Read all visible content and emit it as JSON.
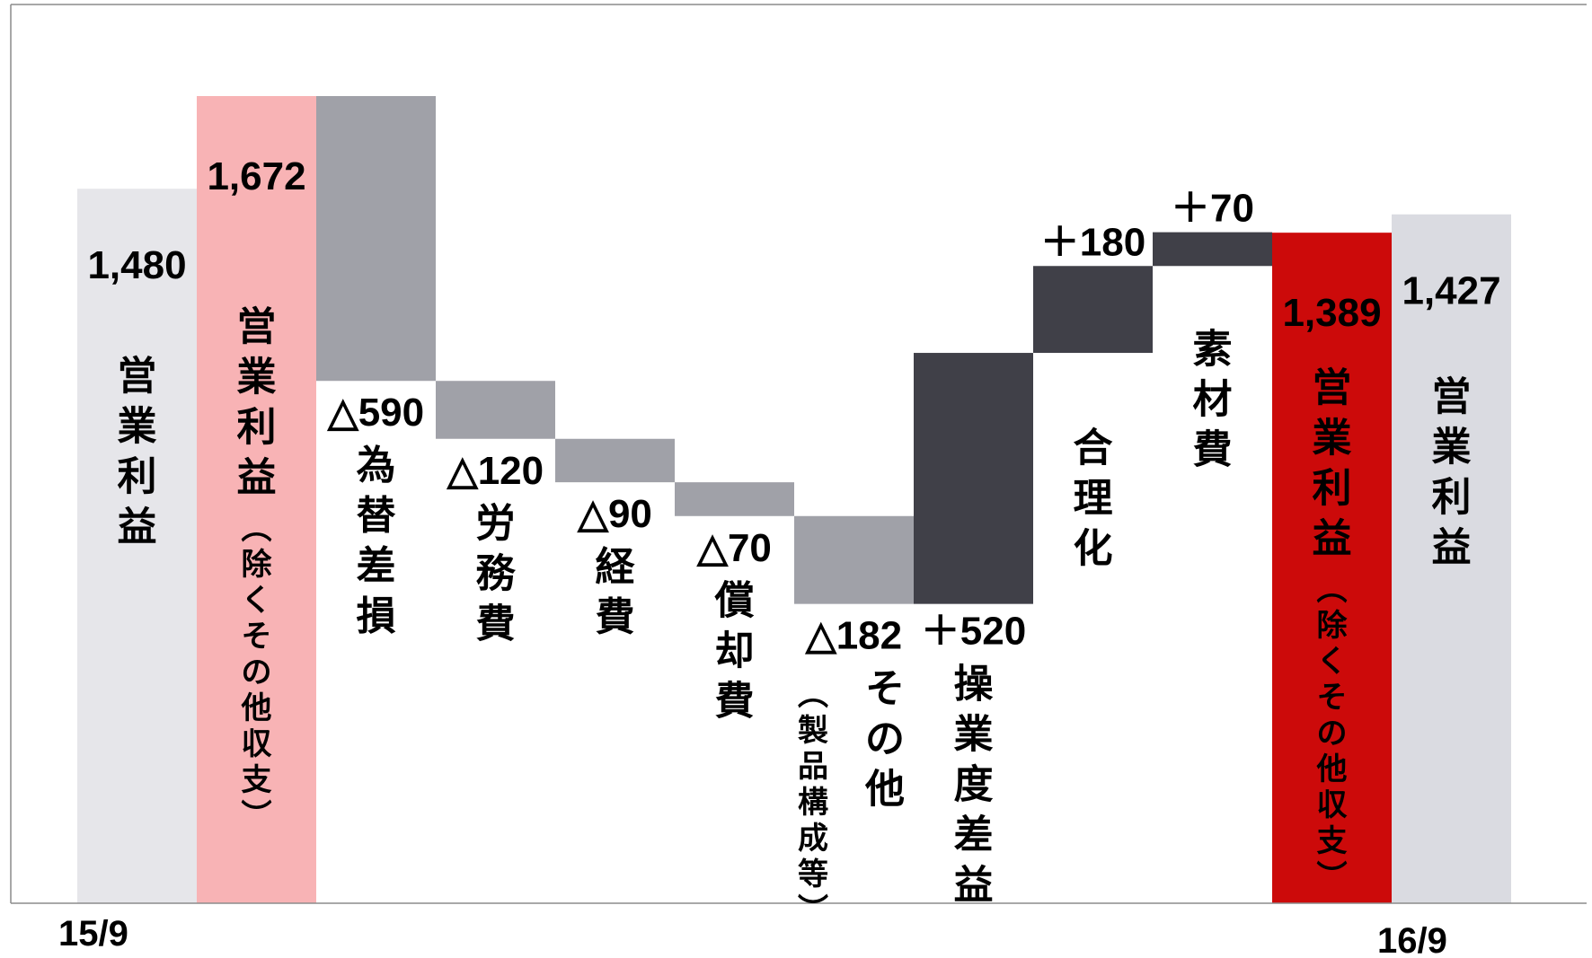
{
  "chart_data": {
    "type": "bar",
    "subtype": "waterfall",
    "categories": [
      "営業利益",
      "営業利益（除くその他収支）",
      "為替差損",
      "労務費",
      "経費",
      "償却費",
      "その他",
      "操業度差益",
      "合理化",
      "素材費",
      "営業利益（除くその他収支）",
      "営業利益"
    ],
    "bars": [
      {
        "label": "営業利益",
        "sublabel": "",
        "value_text": "1,480",
        "kind": "total",
        "start": 0,
        "end": 1480,
        "color": "#e6e6ea",
        "text_color": "#000000"
      },
      {
        "label": "営業利益",
        "sublabel": "（除くその他収支）",
        "value_text": "1,672",
        "kind": "total",
        "start": 0,
        "end": 1672,
        "color": "#f8b3b5",
        "text_color": "#ffffff"
      },
      {
        "label": "為替差損",
        "sublabel": "",
        "value_text": "△590",
        "kind": "decrease",
        "start": 1672,
        "end": 1082,
        "color": "#a0a1a8",
        "text_color": "#000000"
      },
      {
        "label": "労務費",
        "sublabel": "",
        "value_text": "△120",
        "kind": "decrease",
        "start": 1082,
        "end": 962,
        "color": "#a0a1a8",
        "text_color": "#000000"
      },
      {
        "label": "経費",
        "sublabel": "",
        "value_text": "△90",
        "kind": "decrease",
        "start": 962,
        "end": 872,
        "color": "#a0a1a8",
        "text_color": "#000000"
      },
      {
        "label": "償却費",
        "sublabel": "",
        "value_text": "△70",
        "kind": "decrease",
        "start": 872,
        "end": 802,
        "color": "#a0a1a8",
        "text_color": "#000000"
      },
      {
        "label": "その他",
        "sublabel": "（製品構成等）",
        "value_text": "△182",
        "kind": "decrease",
        "start": 802,
        "end": 620,
        "color": "#a0a1a8",
        "text_color": "#000000"
      },
      {
        "label": "操業度差益",
        "sublabel": "",
        "value_text": "＋520",
        "kind": "increase",
        "start": 620,
        "end": 1140,
        "color": "#404048",
        "text_color": "#000000"
      },
      {
        "label": "合理化",
        "sublabel": "",
        "value_text": "＋180",
        "kind": "increase",
        "start": 1140,
        "end": 1320,
        "color": "#404048",
        "text_color": "#000000"
      },
      {
        "label": "素材費",
        "sublabel": "",
        "value_text": "＋70",
        "kind": "increase",
        "start": 1320,
        "end": 1390,
        "color": "#404048",
        "text_color": "#000000"
      },
      {
        "label": "営業利益",
        "sublabel": "（除くその他収支）",
        "value_text": "1,389",
        "kind": "total",
        "start": 0,
        "end": 1389,
        "color": "#cc0a0a",
        "text_color": "#ffffff"
      },
      {
        "label": "営業利益",
        "sublabel": "",
        "value_text": "1,427",
        "kind": "total",
        "start": 0,
        "end": 1427,
        "color": "#dadbe1",
        "text_color": "#000000"
      }
    ],
    "x_period_labels": [
      "15/9",
      "16/9"
    ],
    "ylim": [
      0,
      1700
    ],
    "grid": false,
    "legend": "none"
  }
}
